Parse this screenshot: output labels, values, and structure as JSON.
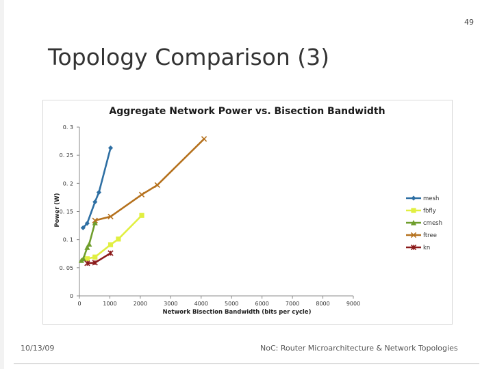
{
  "slide": {
    "number": "49",
    "title": "Topology Comparison (3)",
    "footer_date": "10/13/09",
    "footer_text": "NoC: Router Microarchitecture & Network Topologies"
  },
  "chart_data": {
    "type": "line",
    "title": "Aggregate Network Power vs. Bisection Bandwidth",
    "xlabel": "Network Bisection Bandwidth (bits per cycle)",
    "ylabel": "Power (W)",
    "xlim": [
      0,
      9000
    ],
    "ylim": [
      0,
      0.3
    ],
    "x_ticks": [
      0,
      1000,
      2000,
      3000,
      4000,
      5000,
      6000,
      7000,
      8000,
      9000
    ],
    "x_tick_labels": [
      "0",
      "1000",
      "2000",
      "3000",
      "4000",
      "5000",
      "6000",
      "7000",
      "8000",
      "9000"
    ],
    "y_ticks": [
      0,
      0.05,
      0.1,
      0.15,
      0.2,
      0.25,
      0.3
    ],
    "y_tick_labels": [
      "0",
      "0. 05",
      "0. 1",
      "0. 15",
      "0. 2",
      "0. 25",
      "0. 3"
    ],
    "grid": false,
    "legend_position": "right",
    "series": [
      {
        "name": "mesh",
        "color": "#2e6fa3",
        "marker": "diamond",
        "points": [
          [
            120,
            0.121
          ],
          [
            256,
            0.129
          ],
          [
            512,
            0.167
          ],
          [
            640,
            0.184
          ],
          [
            1024,
            0.263
          ]
        ]
      },
      {
        "name": "fbfly",
        "color": "#e1ef41",
        "marker": "square",
        "points": [
          [
            256,
            0.066
          ],
          [
            512,
            0.069
          ],
          [
            1024,
            0.091
          ],
          [
            1280,
            0.101
          ],
          [
            2048,
            0.143
          ]
        ]
      },
      {
        "name": "cmesh",
        "color": "#6f9e2d",
        "marker": "triangle",
        "points": [
          [
            64,
            0.063
          ],
          [
            128,
            0.066
          ],
          [
            256,
            0.086
          ],
          [
            320,
            0.092
          ],
          [
            512,
            0.13
          ]
        ]
      },
      {
        "name": "ftree",
        "color": "#b5711d",
        "marker": "x",
        "points": [
          [
            512,
            0.134
          ],
          [
            1024,
            0.141
          ],
          [
            2048,
            0.18
          ],
          [
            2560,
            0.197
          ],
          [
            4096,
            0.279
          ]
        ]
      },
      {
        "name": "kn",
        "color": "#8b1a1a",
        "marker": "star",
        "points": [
          [
            256,
            0.058
          ],
          [
            512,
            0.059
          ],
          [
            1024,
            0.076
          ]
        ]
      }
    ]
  }
}
